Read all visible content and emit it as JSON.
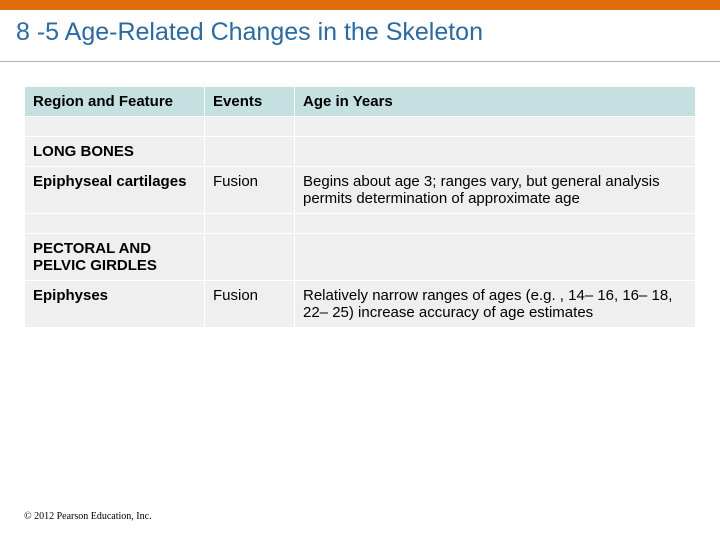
{
  "colors": {
    "accent_bar": "#e36c0a",
    "title_color": "#2c6aa0",
    "header_row_bg": "#c5e0e0",
    "body_row_bg": "#efefef"
  },
  "title": "8 -5 Age-Related Changes in the Skeleton",
  "table": {
    "headers": {
      "col1": "Region and Feature",
      "col2": "Events",
      "col3": "Age in Years"
    },
    "sections": [
      {
        "heading": "LONG BONES",
        "rows": [
          {
            "feature": "Epiphyseal cartilages",
            "events": "Fusion",
            "age": "Begins about age 3; ranges vary, but general analysis permits determination of approximate age"
          }
        ]
      },
      {
        "heading": "PECTORAL AND PELVIC GIRDLES",
        "rows": [
          {
            "feature": "Epiphyses",
            "events": "Fusion",
            "age": "Relatively narrow ranges of ages (e.g. , 14– 16, 16– 18, 22– 25) increase accuracy of age estimates"
          }
        ]
      }
    ]
  },
  "copyright": "© 2012 Pearson Education, Inc."
}
